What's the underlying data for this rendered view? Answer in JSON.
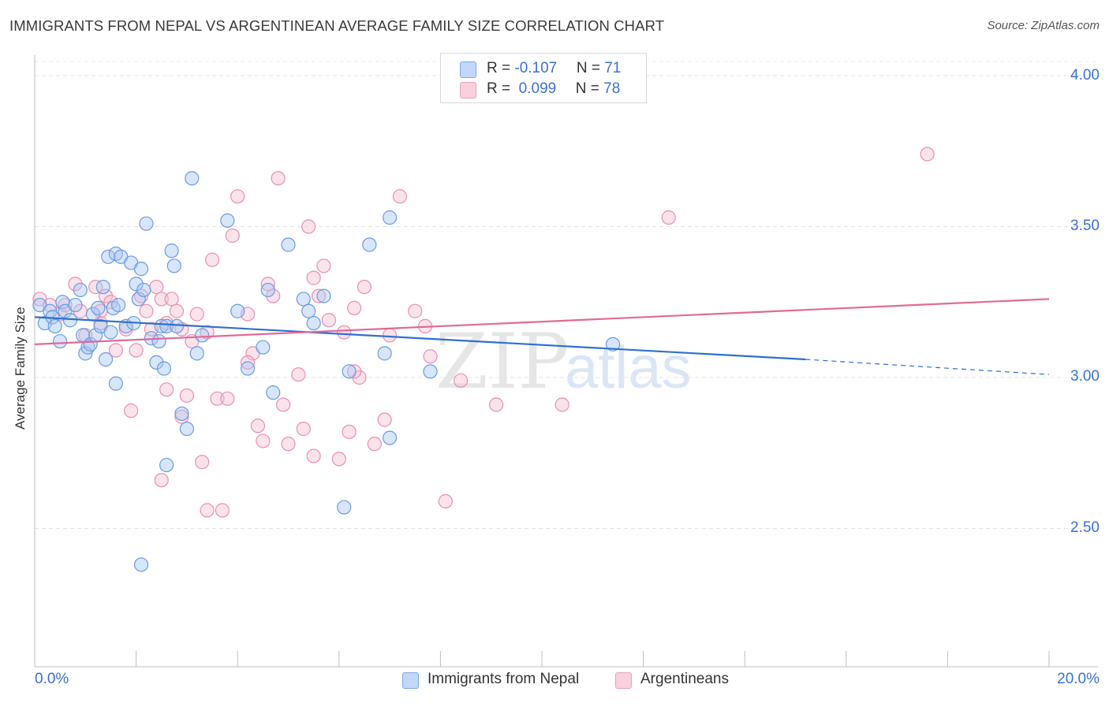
{
  "header": {
    "title": "IMMIGRANTS FROM NEPAL VS ARGENTINEAN AVERAGE FAMILY SIZE CORRELATION CHART",
    "source": "Source: ZipAtlas.com"
  },
  "watermark": "ZIPatlas",
  "legend": {
    "rows": [
      {
        "r_label": "R = ",
        "r_value": "-0.107",
        "n_label": "N = ",
        "n_value": "71"
      },
      {
        "r_label": "R = ",
        "r_value": " 0.099",
        "n_label": "N = ",
        "n_value": "78"
      }
    ]
  },
  "bottom_legend": {
    "series1": "Immigrants from Nepal",
    "series2": "Argentineans"
  },
  "axes": {
    "ylabel": "Average Family Size",
    "x_min_label": "0.0%",
    "x_max_label": "20.0%",
    "y_ticks": [
      "4.00",
      "3.50",
      "3.00",
      "2.50"
    ]
  },
  "colors": {
    "blue_fill": "#a9c8f5",
    "blue_stroke": "#6a9be0",
    "blue_line": "#2f6fd0",
    "pink_fill": "#f7c0d3",
    "pink_stroke": "#e98fb0",
    "pink_line": "#e06a98",
    "tick_text": "#3b6fd6"
  },
  "chart_data": {
    "type": "scatter",
    "xlabel": "",
    "ylabel": "Average Family Size",
    "xlim": [
      0,
      20
    ],
    "ylim": [
      2.0,
      4.1
    ],
    "grid": true,
    "legend_placement": "top-center",
    "series": [
      {
        "name": "Immigrants from Nepal",
        "color": "#6a9be0",
        "trend": {
          "x0": 0,
          "y0": 3.2,
          "x1": 15.2,
          "y1": 3.06,
          "dashed_to_x": 20,
          "dashed_to_y": 3.01
        },
        "points": [
          [
            0.1,
            3.24
          ],
          [
            0.2,
            3.18
          ],
          [
            0.3,
            3.22
          ],
          [
            0.35,
            3.2
          ],
          [
            0.4,
            3.17
          ],
          [
            0.5,
            3.12
          ],
          [
            0.55,
            3.25
          ],
          [
            0.6,
            3.22
          ],
          [
            0.7,
            3.19
          ],
          [
            0.8,
            3.24
          ],
          [
            0.9,
            3.29
          ],
          [
            0.95,
            3.14
          ],
          [
            1.0,
            3.08
          ],
          [
            1.05,
            3.1
          ],
          [
            1.1,
            3.11
          ],
          [
            1.15,
            3.21
          ],
          [
            1.2,
            3.14
          ],
          [
            1.25,
            3.23
          ],
          [
            1.3,
            3.17
          ],
          [
            1.35,
            3.3
          ],
          [
            1.4,
            3.06
          ],
          [
            1.45,
            3.4
          ],
          [
            1.5,
            3.15
          ],
          [
            1.55,
            3.23
          ],
          [
            1.6,
            3.41
          ],
          [
            1.65,
            3.24
          ],
          [
            1.7,
            3.4
          ],
          [
            1.8,
            3.17
          ],
          [
            1.9,
            3.38
          ],
          [
            1.95,
            3.18
          ],
          [
            2.0,
            3.31
          ],
          [
            2.05,
            3.26
          ],
          [
            2.1,
            3.36
          ],
          [
            2.15,
            3.29
          ],
          [
            2.2,
            3.51
          ],
          [
            2.3,
            3.13
          ],
          [
            2.4,
            3.05
          ],
          [
            2.45,
            3.12
          ],
          [
            2.5,
            3.17
          ],
          [
            2.55,
            3.03
          ],
          [
            2.6,
            3.17
          ],
          [
            2.7,
            3.42
          ],
          [
            2.75,
            3.37
          ],
          [
            2.8,
            3.17
          ],
          [
            2.9,
            2.88
          ],
          [
            3.0,
            2.83
          ],
          [
            3.1,
            3.66
          ],
          [
            3.2,
            3.08
          ],
          [
            3.3,
            3.14
          ],
          [
            3.8,
            3.52
          ],
          [
            4.0,
            3.22
          ],
          [
            4.2,
            3.03
          ],
          [
            4.5,
            3.1
          ],
          [
            4.6,
            3.29
          ],
          [
            4.7,
            2.95
          ],
          [
            5.0,
            3.44
          ],
          [
            5.3,
            3.26
          ],
          [
            5.4,
            3.22
          ],
          [
            5.5,
            3.18
          ],
          [
            5.7,
            3.27
          ],
          [
            6.2,
            3.02
          ],
          [
            6.1,
            2.57
          ],
          [
            6.6,
            3.44
          ],
          [
            6.9,
            3.08
          ],
          [
            7.0,
            3.53
          ],
          [
            7.0,
            2.8
          ],
          [
            7.8,
            3.02
          ],
          [
            11.4,
            3.11
          ],
          [
            2.6,
            2.71
          ],
          [
            2.1,
            2.38
          ],
          [
            1.6,
            2.98
          ]
        ]
      },
      {
        "name": "Argentineans",
        "color": "#e98fb0",
        "trend": {
          "x0": 0,
          "y0": 3.11,
          "x1": 20,
          "y1": 3.26
        },
        "points": [
          [
            0.1,
            3.26
          ],
          [
            0.3,
            3.24
          ],
          [
            0.5,
            3.21
          ],
          [
            0.6,
            3.24
          ],
          [
            0.8,
            3.31
          ],
          [
            0.9,
            3.22
          ],
          [
            1.0,
            3.14
          ],
          [
            1.2,
            3.3
          ],
          [
            1.3,
            3.22
          ],
          [
            1.4,
            3.27
          ],
          [
            1.5,
            3.25
          ],
          [
            1.6,
            3.09
          ],
          [
            1.8,
            3.16
          ],
          [
            1.9,
            2.89
          ],
          [
            2.0,
            3.09
          ],
          [
            2.1,
            3.27
          ],
          [
            2.2,
            3.22
          ],
          [
            2.3,
            3.16
          ],
          [
            2.4,
            3.3
          ],
          [
            2.5,
            3.26
          ],
          [
            2.6,
            3.18
          ],
          [
            2.6,
            2.96
          ],
          [
            2.7,
            3.26
          ],
          [
            2.8,
            3.22
          ],
          [
            2.9,
            3.16
          ],
          [
            2.9,
            2.87
          ],
          [
            3.0,
            2.94
          ],
          [
            3.1,
            3.12
          ],
          [
            3.2,
            3.21
          ],
          [
            3.3,
            2.72
          ],
          [
            3.4,
            3.15
          ],
          [
            3.5,
            3.39
          ],
          [
            3.6,
            2.93
          ],
          [
            3.7,
            2.56
          ],
          [
            3.8,
            2.93
          ],
          [
            3.9,
            3.47
          ],
          [
            4.0,
            3.6
          ],
          [
            4.2,
            3.21
          ],
          [
            4.3,
            3.08
          ],
          [
            4.4,
            2.84
          ],
          [
            4.5,
            2.79
          ],
          [
            4.6,
            3.31
          ],
          [
            4.7,
            3.27
          ],
          [
            4.8,
            3.66
          ],
          [
            4.9,
            2.91
          ],
          [
            5.0,
            2.78
          ],
          [
            5.2,
            3.01
          ],
          [
            5.3,
            2.83
          ],
          [
            5.4,
            3.5
          ],
          [
            5.5,
            3.33
          ],
          [
            5.6,
            3.27
          ],
          [
            5.7,
            3.37
          ],
          [
            5.8,
            3.19
          ],
          [
            6.1,
            3.15
          ],
          [
            6.2,
            2.82
          ],
          [
            6.3,
            3.23
          ],
          [
            6.4,
            3.0
          ],
          [
            6.5,
            3.3
          ],
          [
            6.7,
            2.78
          ],
          [
            6.9,
            2.86
          ],
          [
            7.0,
            3.14
          ],
          [
            7.2,
            3.6
          ],
          [
            7.5,
            3.22
          ],
          [
            7.7,
            3.17
          ],
          [
            7.8,
            3.07
          ],
          [
            8.1,
            2.59
          ],
          [
            8.4,
            2.99
          ],
          [
            9.1,
            2.91
          ],
          [
            10.4,
            2.91
          ],
          [
            12.5,
            3.53
          ],
          [
            17.6,
            3.74
          ],
          [
            2.5,
            2.66
          ],
          [
            3.4,
            2.56
          ],
          [
            4.2,
            3.05
          ],
          [
            5.5,
            2.74
          ],
          [
            6.0,
            2.73
          ],
          [
            6.3,
            3.02
          ],
          [
            1.3,
            3.18
          ]
        ]
      }
    ]
  }
}
